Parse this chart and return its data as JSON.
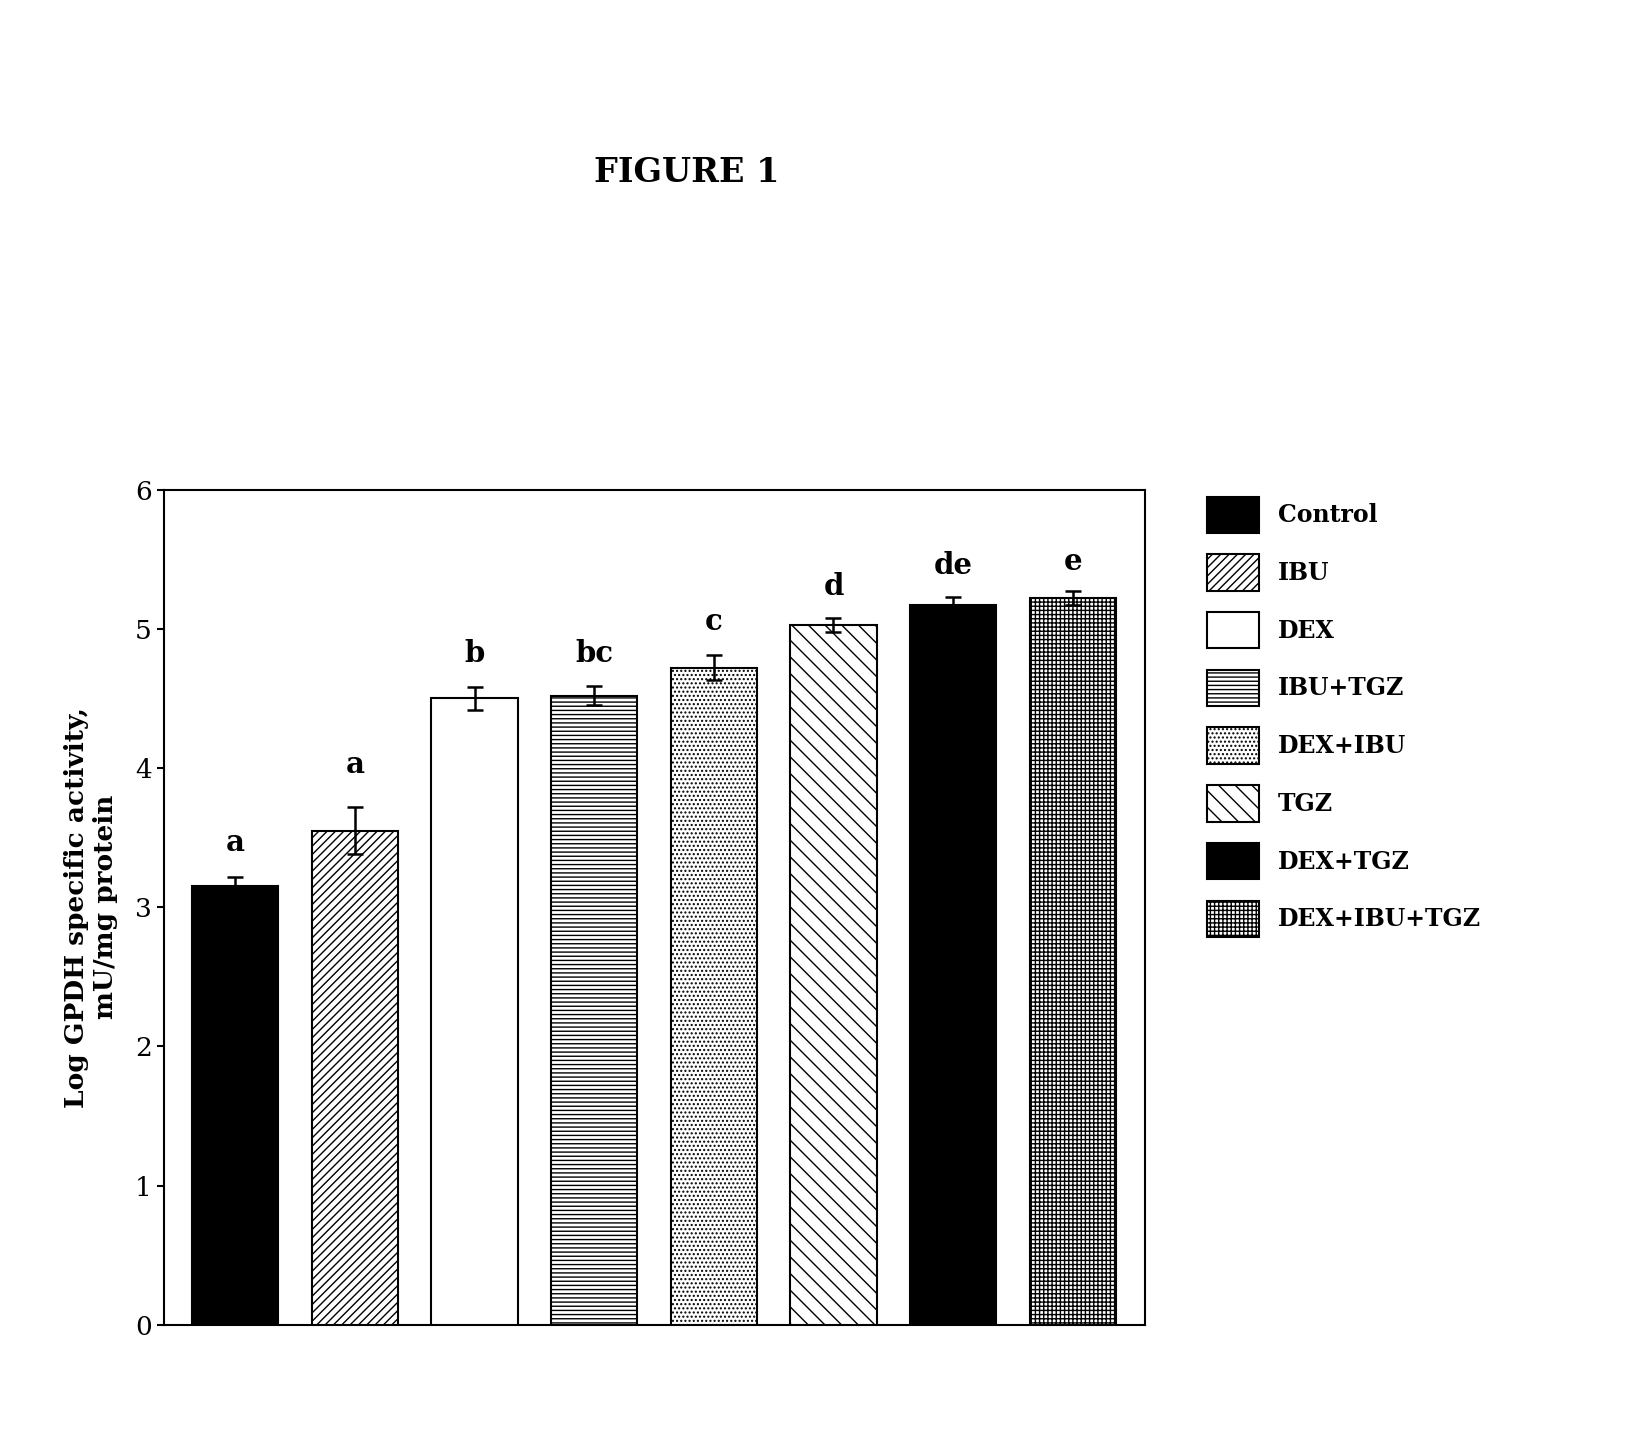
{
  "title": "FIGURE 1",
  "ylabel": "Log GPDH specific activity,\nmU/mg protein",
  "categories": [
    "Control",
    "IBU",
    "DEX",
    "IBU+TGZ",
    "DEX+IBU",
    "TGZ",
    "DEX+TGZ",
    "DEX+IBU+TGZ"
  ],
  "values": [
    3.15,
    3.55,
    4.5,
    4.52,
    4.72,
    5.03,
    5.17,
    5.22
  ],
  "errors": [
    0.07,
    0.17,
    0.08,
    0.07,
    0.09,
    0.05,
    0.06,
    0.05
  ],
  "labels": [
    "a",
    "a",
    "b",
    "bc",
    "c",
    "d",
    "de",
    "e"
  ],
  "ylim": [
    0,
    6
  ],
  "yticks": [
    0,
    1,
    2,
    3,
    4,
    5,
    6
  ],
  "legend_labels": [
    "Control",
    "IBU",
    "DEX",
    "IBU+TGZ",
    "DEX+IBU",
    "TGZ",
    "DEX+TGZ",
    "DEX+IBU+TGZ"
  ],
  "title_fontsize": 24,
  "label_fontsize": 19,
  "tick_fontsize": 19,
  "annot_fontsize": 21,
  "legend_fontsize": 17,
  "bar_width": 0.72,
  "figsize": [
    16.35,
    14.4
  ],
  "dpi": 100
}
